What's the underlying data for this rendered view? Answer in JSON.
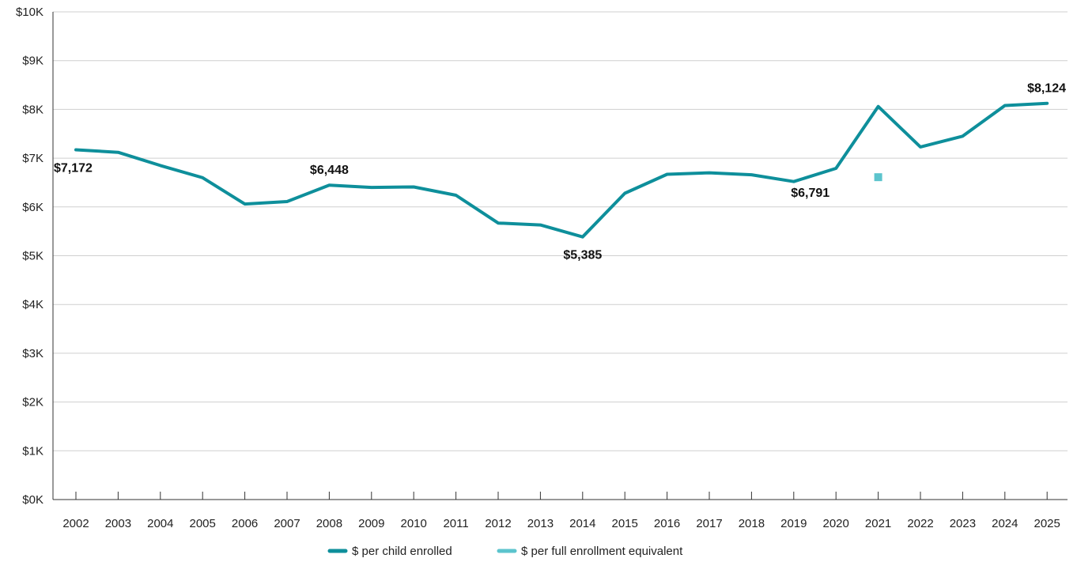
{
  "chart_data": {
    "type": "line",
    "title": "",
    "xlabel": "",
    "ylabel": "",
    "ylim": [
      0,
      10000
    ],
    "y_ticks": [
      0,
      1000,
      2000,
      3000,
      4000,
      5000,
      6000,
      7000,
      8000,
      9000,
      10000
    ],
    "y_tick_labels": [
      "$0K",
      "$1K",
      "$2K",
      "$3K",
      "$4K",
      "$5K",
      "$6K",
      "$7K",
      "$8K",
      "$9K",
      "$10K"
    ],
    "grid": true,
    "legend_position": "bottom-center",
    "categories": [
      "2002",
      "2003",
      "2004",
      "2005",
      "2006",
      "2007",
      "2008",
      "2009",
      "2010",
      "2011",
      "2012",
      "2013",
      "2014",
      "2015",
      "2016",
      "2017",
      "2018",
      "2019",
      "2020",
      "2021",
      "2022",
      "2023",
      "2024",
      "2025"
    ],
    "series": [
      {
        "name": "$ per child enrolled",
        "color": "#0e8f9b",
        "style": "line",
        "values": [
          7172,
          7120,
          6850,
          6600,
          6060,
          6110,
          6448,
          6400,
          6410,
          6240,
          5670,
          5630,
          5385,
          6280,
          6670,
          6700,
          6660,
          6520,
          6791,
          8060,
          7230,
          7450,
          8080,
          8124
        ]
      },
      {
        "name": "$ per full enrollment equivalent",
        "color": "#5cc4cd",
        "style": "marker",
        "points": [
          {
            "x": "2021",
            "y": 6610
          }
        ]
      }
    ],
    "annotations": [
      {
        "category": "2002",
        "text": "$7,172",
        "position": "below"
      },
      {
        "category": "2008",
        "text": "$6,448",
        "position": "above"
      },
      {
        "category": "2014",
        "text": "$5,385",
        "position": "below"
      },
      {
        "category": "2020",
        "text": "$6,791",
        "position": "below-left"
      },
      {
        "category": "2025",
        "text": "$8,124",
        "position": "above"
      }
    ]
  }
}
